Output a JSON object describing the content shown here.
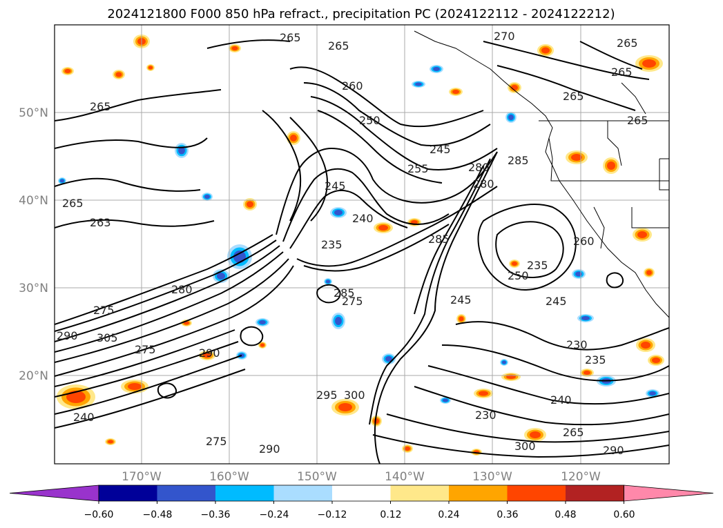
{
  "title": "2024121800 F000 850 hPa refract., precipitation PC (2024122112 - 2024122212)",
  "lat_labels": [
    "50°N",
    "40°N",
    "30°N",
    "20°N"
  ],
  "lon_labels": [
    "170°W",
    "160°W",
    "150°W",
    "140°W",
    "130°W",
    "120°W"
  ],
  "colorbar": {
    "ticks": [
      "−0.60",
      "−0.48",
      "−0.36",
      "−0.24",
      "−0.12",
      "0.12",
      "0.24",
      "0.36",
      "0.48",
      "0.60"
    ],
    "colors": [
      "#9933cc",
      "#000099",
      "#3355cc",
      "#00bbff",
      "#aaddff",
      "#ffffff",
      "#ffe88a",
      "#ffa500",
      "#ff4500",
      "#b22222",
      "#ff88aa"
    ]
  },
  "contour_labels": [
    "265",
    "265",
    "270",
    "265",
    "265",
    "265",
    "265",
    "265",
    "260",
    "250",
    "245",
    "255",
    "245",
    "280",
    "285",
    "280",
    "240",
    "235",
    "285",
    "235",
    "250",
    "245",
    "230",
    "235",
    "240",
    "230",
    "265",
    "300",
    "290",
    "265",
    "263",
    "260",
    "280",
    "275",
    "290",
    "305",
    "275",
    "290",
    "285",
    "275",
    "290",
    "295",
    "300",
    "275",
    "245",
    "240"
  ]
}
